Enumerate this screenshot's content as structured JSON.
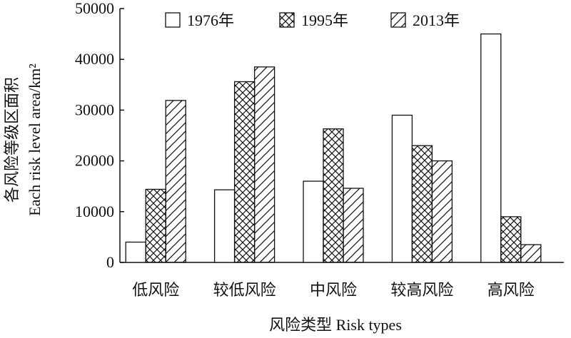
{
  "chart_data": {
    "type": "bar",
    "categories": [
      "低风险",
      "较低风险",
      "中风险",
      "较高风险",
      "高风险"
    ],
    "series": [
      {
        "name": "1976年",
        "values": [
          4000,
          14300,
          16000,
          29000,
          45000
        ],
        "pattern": "empty"
      },
      {
        "name": "1995年",
        "values": [
          14400,
          35600,
          26300,
          23000,
          9000
        ],
        "pattern": "crosshatch"
      },
      {
        "name": "2013年",
        "values": [
          31900,
          38500,
          14600,
          20000,
          3500
        ],
        "pattern": "diagonal"
      }
    ],
    "y_ticks": [
      "0",
      "10000",
      "20000",
      "30000",
      "40000",
      "50000"
    ],
    "ylim": [
      0,
      50000
    ],
    "xlabel": "风险类型 Risk types",
    "ylabel_line1": "各风险等级区面积",
    "ylabel_line2": "Each risk level area/km²",
    "legend_position": "top",
    "grid": false,
    "colors": {
      "stroke": "#111111",
      "fill": "#ffffff"
    }
  }
}
